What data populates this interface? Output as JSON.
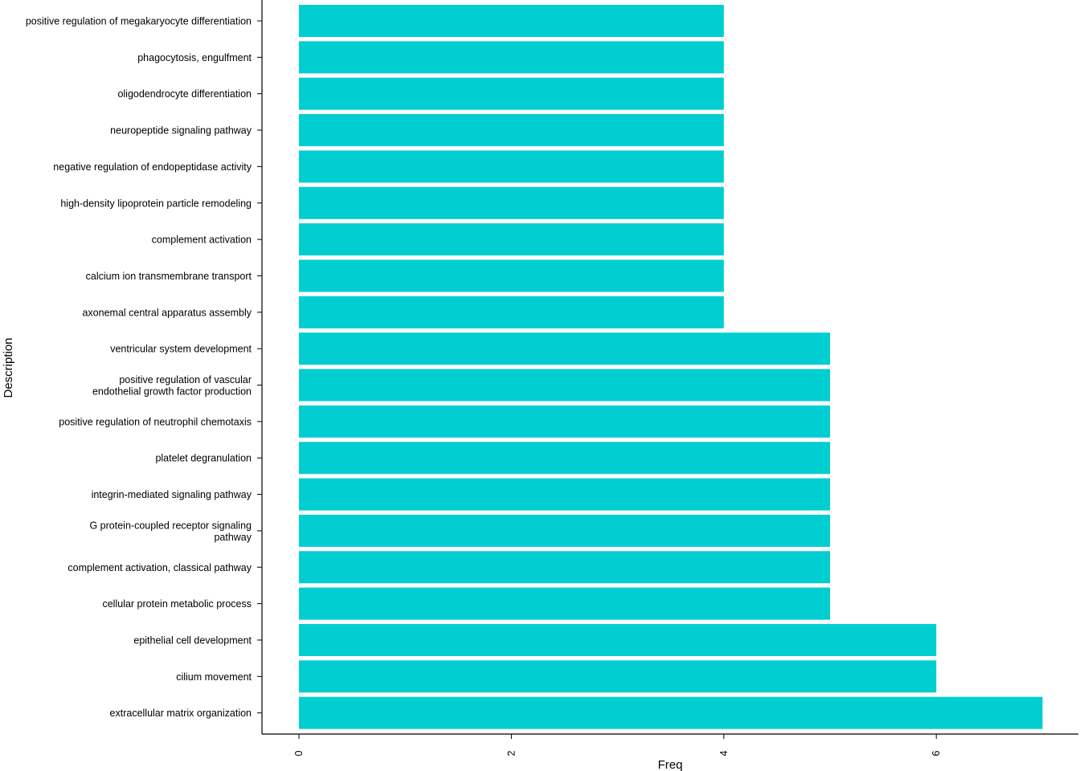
{
  "chart_data": {
    "type": "bar",
    "orientation": "horizontal",
    "title": "",
    "xlabel": "Freq",
    "ylabel": "Description",
    "xlim": [
      0,
      7
    ],
    "x_ticks": [
      0,
      2,
      4,
      6
    ],
    "grid": false,
    "bar_color": "#00CED1",
    "categories": [
      [
        "positive regulation of megakaryocyte differentiation"
      ],
      [
        "phagocytosis, engulfment"
      ],
      [
        "oligodendrocyte differentiation"
      ],
      [
        "neuropeptide signaling pathway"
      ],
      [
        "negative regulation of endopeptidase activity"
      ],
      [
        "high-density lipoprotein particle remodeling"
      ],
      [
        "complement activation"
      ],
      [
        "calcium ion transmembrane transport"
      ],
      [
        "axonemal central apparatus assembly"
      ],
      [
        "ventricular system development"
      ],
      [
        "positive regulation of vascular",
        "endothelial growth factor production"
      ],
      [
        "positive regulation of neutrophil chemotaxis"
      ],
      [
        "platelet degranulation"
      ],
      [
        "integrin-mediated signaling pathway"
      ],
      [
        "G protein-coupled receptor signaling",
        "pathway"
      ],
      [
        "complement activation, classical pathway"
      ],
      [
        "cellular protein metabolic process"
      ],
      [
        "epithelial cell development"
      ],
      [
        "cilium movement"
      ],
      [
        "extracellular matrix organization"
      ]
    ],
    "values": [
      4,
      4,
      4,
      4,
      4,
      4,
      4,
      4,
      4,
      5,
      5,
      5,
      5,
      5,
      5,
      5,
      5,
      6,
      6,
      7
    ]
  }
}
